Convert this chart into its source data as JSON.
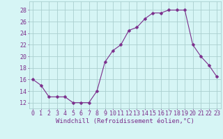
{
  "x": [
    0,
    1,
    2,
    3,
    4,
    5,
    6,
    7,
    8,
    9,
    10,
    11,
    12,
    13,
    14,
    15,
    16,
    17,
    18,
    19,
    20,
    21,
    22,
    23
  ],
  "y": [
    16,
    15,
    13,
    13,
    13,
    12,
    12,
    12,
    14,
    19,
    21,
    22,
    24.5,
    25,
    26.5,
    27.5,
    27.5,
    28,
    28,
    28,
    22,
    20,
    18.5,
    16.5
  ],
  "line_color": "#7B2D8B",
  "marker": "D",
  "marker_size": 2.5,
  "bg_color": "#d6f5f5",
  "grid_color": "#aacfcf",
  "xlabel": "Windchill (Refroidissement éolien,°C)",
  "ylabel_ticks": [
    12,
    14,
    16,
    18,
    20,
    22,
    24,
    26,
    28
  ],
  "xticks": [
    0,
    1,
    2,
    3,
    4,
    5,
    6,
    7,
    8,
    9,
    10,
    11,
    12,
    13,
    14,
    15,
    16,
    17,
    18,
    19,
    20,
    21,
    22,
    23
  ],
  "xlim": [
    -0.5,
    23.5
  ],
  "ylim": [
    11,
    29.5
  ],
  "font_color": "#7B2D8B",
  "xlabel_fontsize": 6.5,
  "tick_fontsize": 6.0
}
